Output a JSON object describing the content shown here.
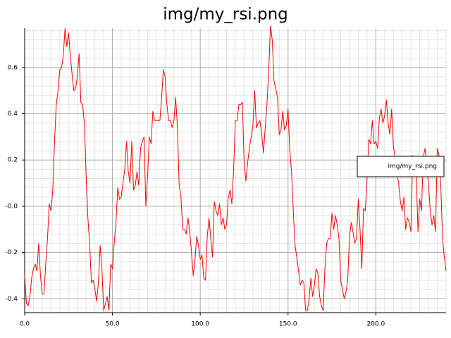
{
  "chart_data": {
    "type": "line",
    "title": "img/my_rsi.png",
    "x": [
      0,
      1,
      2,
      3,
      4,
      5,
      6,
      7,
      8,
      9,
      10,
      11,
      12,
      13,
      14,
      15,
      16,
      17,
      18,
      19,
      20,
      21,
      22,
      23,
      24,
      25,
      26,
      27,
      28,
      29,
      30,
      31,
      32,
      33,
      34,
      35,
      36,
      37,
      38,
      39,
      40,
      41,
      42,
      43,
      44,
      45,
      46,
      47,
      48,
      49,
      50,
      51,
      52,
      53,
      54,
      55,
      56,
      57,
      58,
      59,
      60,
      61,
      62,
      63,
      64,
      65,
      66,
      67,
      68,
      69,
      70,
      71,
      72,
      73,
      74,
      75,
      76,
      77,
      78,
      79,
      80,
      81,
      82,
      83,
      84,
      85,
      86,
      87,
      88,
      89,
      90,
      91,
      92,
      93,
      94,
      95,
      96,
      97,
      98,
      99,
      100,
      101,
      102,
      103,
      104,
      105,
      106,
      107,
      108,
      109,
      110,
      111,
      112,
      113,
      114,
      115,
      116,
      117,
      118,
      119,
      120,
      121,
      122,
      123,
      124,
      125,
      126,
      127,
      128,
      129,
      130,
      131,
      132,
      133,
      134,
      135,
      136,
      137,
      138,
      139,
      140,
      141,
      142,
      143,
      144,
      145,
      146,
      147,
      148,
      149,
      150,
      151,
      152,
      153,
      154,
      155,
      156,
      157,
      158,
      159,
      160,
      161,
      162,
      163,
      164,
      165,
      166,
      167,
      168,
      169,
      170,
      171,
      172,
      173,
      174,
      175,
      176,
      177,
      178,
      179,
      180,
      181,
      182,
      183,
      184,
      185,
      186,
      187,
      188,
      189,
      190,
      191,
      192,
      193,
      194,
      195,
      196,
      197,
      198,
      199,
      200,
      201,
      202,
      203,
      204,
      205,
      206,
      207,
      208,
      209,
      210,
      211,
      212,
      213,
      214,
      215,
      216,
      217,
      218,
      219,
      220,
      221,
      222,
      223,
      224,
      225,
      226,
      227,
      228,
      229,
      230,
      231,
      232,
      233,
      234,
      235,
      236,
      237,
      238,
      239,
      240
    ],
    "series": [
      {
        "name": "img/my_rsi.png",
        "color": "#ff0000",
        "values": [
          -0.3,
          -0.42,
          -0.43,
          -0.39,
          -0.31,
          -0.27,
          -0.25,
          -0.28,
          -0.16,
          -0.3,
          -0.38,
          -0.38,
          -0.25,
          -0.14,
          0.01,
          -0.02,
          0.07,
          0.28,
          0.44,
          0.5,
          0.59,
          0.6,
          0.65,
          0.77,
          0.69,
          0.75,
          0.65,
          0.57,
          0.5,
          0.51,
          0.56,
          0.66,
          0.45,
          0.44,
          0.36,
          0.13,
          -0.05,
          -0.16,
          -0.33,
          -0.32,
          -0.36,
          -0.41,
          -0.33,
          -0.17,
          -0.27,
          -0.45,
          -0.42,
          -0.39,
          -0.45,
          -0.25,
          -0.27,
          -0.16,
          -0.07,
          0.08,
          0.03,
          0.04,
          0.1,
          0.16,
          0.28,
          0.15,
          0.1,
          0.28,
          0.07,
          0.09,
          0.15,
          0.09,
          0.25,
          0.28,
          0.3,
          0.0,
          0.13,
          0.3,
          0.27,
          0.41,
          0.37,
          0.37,
          0.37,
          0.37,
          0.47,
          0.59,
          0.56,
          0.44,
          0.37,
          0.37,
          0.34,
          0.37,
          0.47,
          0.34,
          0.09,
          0.04,
          -0.1,
          -0.1,
          -0.12,
          -0.05,
          -0.11,
          -0.2,
          -0.3,
          -0.23,
          -0.13,
          -0.17,
          -0.23,
          -0.21,
          -0.31,
          -0.32,
          -0.13,
          -0.05,
          -0.14,
          -0.22,
          0.02,
          -0.02,
          -0.04,
          0.01,
          -0.08,
          -0.05,
          -0.1,
          -0.08,
          0.04,
          0.07,
          0.01,
          0.16,
          0.37,
          0.37,
          0.44,
          0.44,
          0.45,
          0.19,
          0.11,
          0.19,
          0.25,
          0.3,
          0.35,
          0.5,
          0.34,
          0.36,
          0.37,
          0.31,
          0.23,
          0.34,
          0.44,
          0.59,
          0.78,
          0.72,
          0.54,
          0.51,
          0.47,
          0.31,
          0.33,
          0.41,
          0.33,
          0.35,
          0.42,
          0.24,
          0.15,
          -0.02,
          -0.17,
          -0.22,
          -0.28,
          -0.34,
          -0.32,
          -0.33,
          -0.45,
          -0.45,
          -0.4,
          -0.31,
          -0.39,
          -0.34,
          -0.27,
          -0.29,
          -0.39,
          -0.43,
          -0.45,
          -0.27,
          -0.16,
          -0.14,
          -0.14,
          -0.03,
          -0.1,
          -0.04,
          -0.08,
          -0.14,
          -0.32,
          -0.36,
          -0.4,
          -0.37,
          -0.32,
          -0.13,
          -0.07,
          -0.11,
          -0.16,
          -0.14,
          0.03,
          -0.1,
          -0.27,
          -0.01,
          -0.02,
          0.12,
          0.29,
          0.27,
          0.37,
          0.27,
          0.28,
          0.25,
          0.38,
          0.42,
          0.36,
          0.39,
          0.46,
          0.36,
          0.31,
          0.42,
          0.26,
          0.21,
          0.14,
          0.1,
          0.02,
          -0.02,
          0.04,
          -0.1,
          -0.05,
          -0.07,
          -0.11,
          0.22,
          0.18,
          0.15,
          -0.11,
          0.03,
          -0.02,
          0.21,
          0.25,
          0.19,
          0.09,
          -0.02,
          -0.08,
          -0.04,
          -0.11,
          0.25,
          0.22,
          0.09,
          -0.14,
          -0.22,
          -0.28
        ]
      }
    ],
    "xlim": [
      0,
      240
    ],
    "ylim": [
      -0.46,
      0.77
    ],
    "xticks": [
      {
        "value": 0,
        "label": "0.0"
      },
      {
        "value": 50,
        "label": "50.0"
      },
      {
        "value": 100,
        "label": "100.0"
      },
      {
        "value": 150,
        "label": "150.0"
      },
      {
        "value": 200,
        "label": "200.0"
      }
    ],
    "yticks": [
      -0.4,
      -0.2,
      {
        "value": 0,
        "label": "-0.0"
      },
      0.2,
      0.4,
      0.6
    ],
    "grid": true,
    "minor_grid": {
      "x": 10,
      "y": 5
    },
    "legend": "right"
  }
}
